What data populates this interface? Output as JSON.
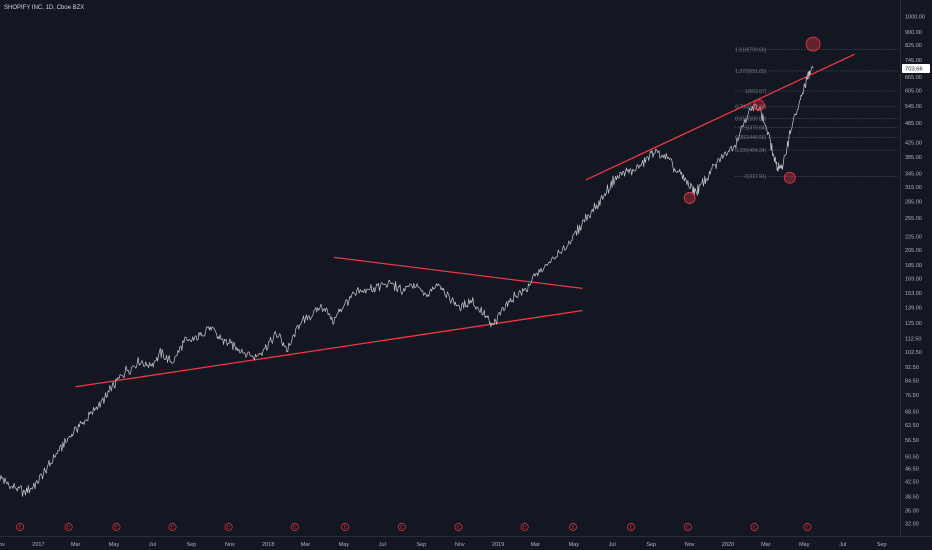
{
  "window": {
    "title": "SHOPIFY INC, 1D, Cboe BZX"
  },
  "colors": {
    "background": "#131722",
    "price_line": "#c8cad0",
    "trendline": "#f23645",
    "fib_line": "#5d606b",
    "earnings": "#f23645",
    "axis_text": "#b2b5be",
    "current_price_bg": "#ffffff",
    "current_price_text": "#131722"
  },
  "chart_data": {
    "type": "line",
    "title": "SHOPIFY INC, 1D, Cboe BZX",
    "y_scale": "log",
    "ylim": [
      29.4,
      1120
    ],
    "x_range": [
      "2016-11-01",
      "2020-09-30"
    ],
    "grid": false,
    "y_ticks": [
      "1000.00",
      "900.00",
      "825.00",
      "745.00",
      "703.66",
      "665.00",
      "605.00",
      "545.00",
      "485.00",
      "425.00",
      "385.00",
      "345.00",
      "315.00",
      "285.00",
      "255.00",
      "225.00",
      "205.00",
      "185.00",
      "169.00",
      "153.00",
      "139.00",
      "125.00",
      "112.50",
      "102.50",
      "92.50",
      "84.50",
      "76.50",
      "68.50",
      "62.50",
      "56.50",
      "50.50",
      "46.50",
      "42.50",
      "38.50",
      "35.00",
      "32.00"
    ],
    "x_ticks": [
      {
        "label": "Nov",
        "date": "2016-11-01"
      },
      {
        "label": "2017",
        "date": "2017-01-01"
      },
      {
        "label": "Mar",
        "date": "2017-03-01"
      },
      {
        "label": "May",
        "date": "2017-05-01"
      },
      {
        "label": "Jul",
        "date": "2017-07-01"
      },
      {
        "label": "Sep",
        "date": "2017-09-01"
      },
      {
        "label": "Nov",
        "date": "2017-11-01"
      },
      {
        "label": "2018",
        "date": "2018-01-01"
      },
      {
        "label": "Mar",
        "date": "2018-03-01"
      },
      {
        "label": "May",
        "date": "2018-05-01"
      },
      {
        "label": "Jul",
        "date": "2018-07-01"
      },
      {
        "label": "Sep",
        "date": "2018-09-01"
      },
      {
        "label": "Nov",
        "date": "2018-11-01"
      },
      {
        "label": "2019",
        "date": "2019-01-01"
      },
      {
        "label": "Mar",
        "date": "2019-03-01"
      },
      {
        "label": "May",
        "date": "2019-05-01"
      },
      {
        "label": "Jul",
        "date": "2019-07-01"
      },
      {
        "label": "Sep",
        "date": "2019-09-01"
      },
      {
        "label": "Nov",
        "date": "2019-11-01"
      },
      {
        "label": "2020",
        "date": "2020-01-01"
      },
      {
        "label": "Mar",
        "date": "2020-03-01"
      },
      {
        "label": "May",
        "date": "2020-05-01"
      },
      {
        "label": "Jul",
        "date": "2020-07-01"
      },
      {
        "label": "Sep",
        "date": "2020-09-01"
      }
    ],
    "current_price": {
      "label": "703.66",
      "value": 703.66
    },
    "price_series": {
      "x": [
        "2016-11-01",
        "2016-11-20",
        "2016-12-10",
        "2016-12-28",
        "2017-01-15",
        "2017-02-01",
        "2017-02-20",
        "2017-03-10",
        "2017-03-28",
        "2017-04-15",
        "2017-05-01",
        "2017-05-20",
        "2017-06-10",
        "2017-06-28",
        "2017-07-15",
        "2017-08-01",
        "2017-08-20",
        "2017-09-10",
        "2017-09-28",
        "2017-10-15",
        "2017-11-01",
        "2017-11-20",
        "2017-12-10",
        "2017-12-28",
        "2018-01-15",
        "2018-02-01",
        "2018-02-20",
        "2018-03-10",
        "2018-03-28",
        "2018-04-15",
        "2018-05-01",
        "2018-05-20",
        "2018-06-10",
        "2018-06-28",
        "2018-07-15",
        "2018-08-01",
        "2018-08-20",
        "2018-09-10",
        "2018-09-28",
        "2018-10-15",
        "2018-11-01",
        "2018-11-20",
        "2018-12-10",
        "2018-12-24",
        "2019-01-10",
        "2019-01-28",
        "2019-02-15",
        "2019-03-05",
        "2019-03-25",
        "2019-04-15",
        "2019-05-01",
        "2019-05-20",
        "2019-06-10",
        "2019-06-28",
        "2019-07-15",
        "2019-08-01",
        "2019-08-20",
        "2019-09-05",
        "2019-09-25",
        "2019-10-15",
        "2019-11-01",
        "2019-11-12",
        "2019-11-25",
        "2019-12-10",
        "2019-12-28",
        "2020-01-15",
        "2020-02-01",
        "2020-02-19",
        "2020-03-05",
        "2020-03-18",
        "2020-03-28",
        "2020-04-10",
        "2020-04-25",
        "2020-05-05",
        "2020-05-15"
      ],
      "y": [
        44,
        41,
        39.5,
        42,
        46.5,
        52,
        58,
        63,
        68,
        74,
        82,
        90,
        96,
        94,
        102,
        95,
        110,
        112,
        122,
        113,
        108,
        104,
        99,
        106,
        116,
        104,
        125,
        132,
        140,
        126,
        142,
        152,
        157,
        160,
        164,
        155,
        162,
        150,
        165,
        148,
        138,
        146,
        132,
        122,
        140,
        150,
        158,
        175,
        190,
        205,
        225,
        255,
        280,
        320,
        345,
        350,
        368,
        400,
        385,
        345,
        315,
        306,
        327,
        360,
        395,
        430,
        520,
        545,
        450,
        360,
        360,
        470,
        565,
        655,
        705
      ]
    },
    "trendlines": [
      {
        "name": "triangle-upper",
        "start": {
          "date": "2018-04-15",
          "price": 195
        },
        "end": {
          "date": "2019-05-15",
          "price": 158
        }
      },
      {
        "name": "triangle-lower-support",
        "start": {
          "date": "2017-03-01",
          "price": 81
        },
        "end": {
          "date": "2019-05-15",
          "price": 136
        }
      },
      {
        "name": "channel-upper",
        "start": {
          "date": "2019-05-20",
          "price": 330
        },
        "end": {
          "date": "2020-07-20",
          "price": 775
        }
      }
    ],
    "fib_levels": [
      {
        "label": "1.618(799.66)",
        "price": 799.66
      },
      {
        "label": "1.272(691.65)",
        "price": 691.65
      },
      {
        "label": "1(603.67)",
        "price": 603.67
      },
      {
        "label": "0.786(542.35)",
        "price": 542.35
      },
      {
        "label": "0.618(500.53)",
        "price": 500.53
      },
      {
        "label": "0.5(470.64)",
        "price": 470.64
      },
      {
        "label": "0.382(440.56)",
        "price": 440.56
      },
      {
        "label": "0.236(404.34)",
        "price": 404.34
      },
      {
        "label": "0(337.91)",
        "price": 337.91
      }
    ],
    "pivot_circles": [
      {
        "date": "2019-11-01",
        "price": 292
      },
      {
        "date": "2020-02-19",
        "price": 548
      },
      {
        "date": "2020-04-08",
        "price": 335
      },
      {
        "date": "2020-05-15",
        "price": 830
      }
    ],
    "earnings_markers": {
      "symbol": "E",
      "dates": [
        "2016-12-03",
        "2017-02-18",
        "2017-05-05",
        "2017-08-02",
        "2017-10-30",
        "2018-02-12",
        "2018-05-03",
        "2018-08-01",
        "2018-10-30",
        "2019-02-12",
        "2019-04-30",
        "2019-07-31",
        "2019-10-29",
        "2020-02-12",
        "2020-05-06"
      ]
    }
  }
}
